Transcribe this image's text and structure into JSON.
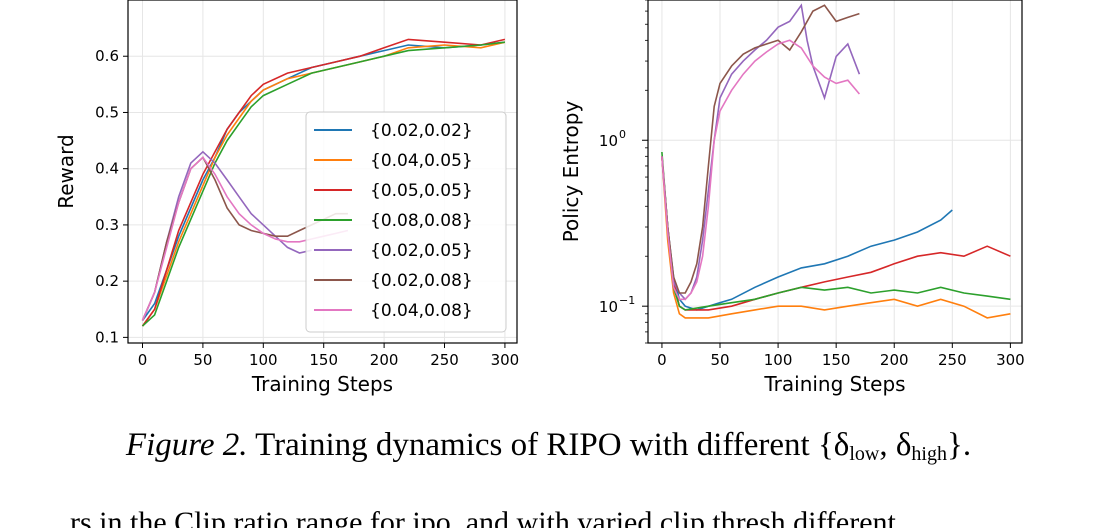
{
  "chart_data": [
    {
      "type": "line",
      "xlabel": "Training Steps",
      "ylabel": "Reward",
      "xlim": [
        -12,
        310
      ],
      "ylim": [
        0.09,
        0.7
      ],
      "xticks": [
        "0",
        "50",
        "100",
        "150",
        "200",
        "250",
        "300"
      ],
      "yticks": [
        "0.1",
        "0.2",
        "0.3",
        "0.4",
        "0.5",
        "0.6"
      ],
      "grid": true,
      "legend_position": "lower right",
      "series": [
        {
          "name": "{0.02,0.02}",
          "color": "#1f77b4",
          "x": [
            0,
            10,
            20,
            30,
            40,
            50,
            60,
            70,
            80,
            90,
            100,
            120,
            140,
            160,
            180,
            200,
            220,
            250,
            280,
            300
          ],
          "y": [
            0.13,
            0.16,
            0.22,
            0.28,
            0.33,
            0.38,
            0.42,
            0.47,
            0.5,
            0.52,
            0.54,
            0.56,
            0.58,
            0.59,
            0.6,
            0.61,
            0.62,
            0.615,
            0.62,
            0.625
          ]
        },
        {
          "name": "{0.04,0.05}",
          "color": "#ff7f0e",
          "x": [
            0,
            10,
            20,
            30,
            40,
            50,
            60,
            70,
            80,
            90,
            100,
            120,
            140,
            160,
            180,
            200,
            220,
            250,
            280,
            300
          ],
          "y": [
            0.12,
            0.15,
            0.21,
            0.27,
            0.32,
            0.37,
            0.42,
            0.46,
            0.49,
            0.52,
            0.54,
            0.56,
            0.57,
            0.58,
            0.59,
            0.6,
            0.615,
            0.62,
            0.615,
            0.625
          ]
        },
        {
          "name": "{0.05,0.05}",
          "color": "#d62728",
          "x": [
            0,
            10,
            20,
            30,
            40,
            50,
            60,
            70,
            80,
            90,
            100,
            120,
            140,
            160,
            180,
            200,
            220,
            250,
            280,
            300
          ],
          "y": [
            0.12,
            0.15,
            0.22,
            0.29,
            0.34,
            0.39,
            0.43,
            0.47,
            0.5,
            0.53,
            0.55,
            0.57,
            0.58,
            0.59,
            0.6,
            0.615,
            0.63,
            0.625,
            0.62,
            0.63
          ]
        },
        {
          "name": "{0.08,0.08}",
          "color": "#2ca02c",
          "x": [
            0,
            10,
            20,
            30,
            40,
            50,
            60,
            70,
            80,
            90,
            100,
            120,
            140,
            160,
            180,
            200,
            220,
            250,
            280,
            300
          ],
          "y": [
            0.12,
            0.14,
            0.2,
            0.26,
            0.31,
            0.36,
            0.41,
            0.45,
            0.48,
            0.51,
            0.53,
            0.55,
            0.57,
            0.58,
            0.59,
            0.6,
            0.61,
            0.615,
            0.62,
            0.625
          ]
        },
        {
          "name": "{0.02,0.05}",
          "color": "#9467bd",
          "x": [
            0,
            10,
            20,
            30,
            40,
            50,
            60,
            70,
            80,
            90,
            100,
            110,
            120,
            130,
            140
          ],
          "y": [
            0.13,
            0.18,
            0.27,
            0.35,
            0.41,
            0.43,
            0.41,
            0.38,
            0.35,
            0.32,
            0.3,
            0.28,
            0.26,
            0.25,
            0.255
          ]
        },
        {
          "name": "{0.02,0.08}",
          "color": "#8c564b",
          "x": [
            0,
            10,
            20,
            30,
            40,
            50,
            60,
            70,
            80,
            90,
            100,
            110,
            120,
            130,
            140,
            150,
            160,
            170
          ],
          "y": [
            0.13,
            0.18,
            0.27,
            0.34,
            0.4,
            0.42,
            0.38,
            0.33,
            0.3,
            0.29,
            0.285,
            0.28,
            0.28,
            0.29,
            0.3,
            0.31,
            0.32,
            0.32
          ]
        },
        {
          "name": "{0.04,0.08}",
          "color": "#e377c2",
          "x": [
            0,
            10,
            20,
            30,
            40,
            50,
            60,
            70,
            80,
            90,
            100,
            110,
            120,
            130,
            140,
            150,
            160,
            170
          ],
          "y": [
            0.13,
            0.18,
            0.26,
            0.34,
            0.4,
            0.42,
            0.39,
            0.35,
            0.32,
            0.3,
            0.285,
            0.275,
            0.27,
            0.27,
            0.275,
            0.28,
            0.285,
            0.29
          ]
        }
      ]
    },
    {
      "type": "line",
      "xlabel": "Training Steps",
      "ylabel": "Policy Entropy",
      "yscale": "log",
      "xlim": [
        -12,
        310
      ],
      "ylim": [
        0.06,
        7.0
      ],
      "xticks": [
        "0",
        "50",
        "100",
        "150",
        "200",
        "250",
        "300"
      ],
      "yticks": [
        "10^-1",
        "10^0"
      ],
      "grid": true,
      "series": [
        {
          "name": "{0.02,0.02}",
          "color": "#1f77b4",
          "x": [
            0,
            5,
            10,
            15,
            20,
            30,
            40,
            50,
            60,
            80,
            100,
            120,
            140,
            160,
            180,
            200,
            220,
            240,
            250
          ],
          "y": [
            0.8,
            0.3,
            0.15,
            0.11,
            0.1,
            0.095,
            0.1,
            0.105,
            0.11,
            0.13,
            0.15,
            0.17,
            0.18,
            0.2,
            0.23,
            0.25,
            0.28,
            0.33,
            0.38
          ]
        },
        {
          "name": "{0.04,0.05}",
          "color": "#ff7f0e",
          "x": [
            0,
            5,
            10,
            15,
            20,
            40,
            60,
            80,
            100,
            120,
            140,
            160,
            180,
            200,
            220,
            240,
            260,
            280,
            300
          ],
          "y": [
            0.8,
            0.25,
            0.12,
            0.09,
            0.085,
            0.085,
            0.09,
            0.095,
            0.1,
            0.1,
            0.095,
            0.1,
            0.105,
            0.11,
            0.1,
            0.11,
            0.1,
            0.085,
            0.09
          ]
        },
        {
          "name": "{0.05,0.05}",
          "color": "#d62728",
          "x": [
            0,
            5,
            10,
            15,
            20,
            40,
            60,
            80,
            100,
            120,
            140,
            160,
            180,
            200,
            220,
            240,
            260,
            280,
            300
          ],
          "y": [
            0.8,
            0.3,
            0.14,
            0.1,
            0.095,
            0.095,
            0.1,
            0.11,
            0.12,
            0.13,
            0.14,
            0.15,
            0.16,
            0.18,
            0.2,
            0.21,
            0.2,
            0.23,
            0.2
          ]
        },
        {
          "name": "{0.08,0.08}",
          "color": "#2ca02c",
          "x": [
            0,
            5,
            10,
            15,
            20,
            40,
            60,
            80,
            100,
            120,
            140,
            160,
            180,
            200,
            220,
            240,
            260,
            280,
            300
          ],
          "y": [
            0.85,
            0.3,
            0.13,
            0.1,
            0.095,
            0.1,
            0.105,
            0.11,
            0.12,
            0.13,
            0.125,
            0.13,
            0.12,
            0.125,
            0.12,
            0.13,
            0.12,
            0.115,
            0.11
          ]
        },
        {
          "name": "{0.02,0.05}",
          "color": "#9467bd",
          "x": [
            0,
            5,
            10,
            15,
            20,
            25,
            30,
            35,
            40,
            45,
            50,
            60,
            70,
            80,
            90,
            100,
            110,
            120,
            125,
            130,
            140,
            150,
            160,
            170
          ],
          "y": [
            0.8,
            0.3,
            0.14,
            0.12,
            0.11,
            0.12,
            0.15,
            0.25,
            0.5,
            1.0,
            1.8,
            2.5,
            3.0,
            3.5,
            4.0,
            4.8,
            5.2,
            6.5,
            4.0,
            2.8,
            1.8,
            3.2,
            3.8,
            2.5
          ]
        },
        {
          "name": "{0.02,0.08}",
          "color": "#8c564b",
          "x": [
            0,
            5,
            10,
            15,
            20,
            25,
            30,
            35,
            40,
            45,
            50,
            60,
            70,
            80,
            90,
            100,
            110,
            120,
            130,
            140,
            150,
            160,
            170
          ],
          "y": [
            0.8,
            0.3,
            0.15,
            0.12,
            0.12,
            0.14,
            0.18,
            0.3,
            0.7,
            1.6,
            2.2,
            2.8,
            3.3,
            3.6,
            3.8,
            4.0,
            3.5,
            4.5,
            6.0,
            6.5,
            5.2,
            5.5,
            5.8
          ]
        },
        {
          "name": "{0.04,0.08}",
          "color": "#e377c2",
          "x": [
            0,
            5,
            10,
            15,
            20,
            25,
            30,
            35,
            40,
            45,
            50,
            60,
            70,
            80,
            90,
            100,
            110,
            120,
            130,
            140,
            150,
            160,
            170
          ],
          "y": [
            0.8,
            0.28,
            0.13,
            0.11,
            0.11,
            0.12,
            0.14,
            0.2,
            0.4,
            1.0,
            1.5,
            2.0,
            2.5,
            3.0,
            3.4,
            3.8,
            4.0,
            3.6,
            2.8,
            2.4,
            2.2,
            2.3,
            1.9
          ]
        }
      ]
    }
  ],
  "caption": {
    "prefix": "Figure 2.",
    "text": "Training dynamics of RIPO with different {δ",
    "sub_low": "low",
    "mid": ", δ",
    "sub_high": "high",
    "suffix": "}."
  },
  "body_fragment": "rs in the Clip ratio range for ipo, and with varied clip thresh different ..."
}
